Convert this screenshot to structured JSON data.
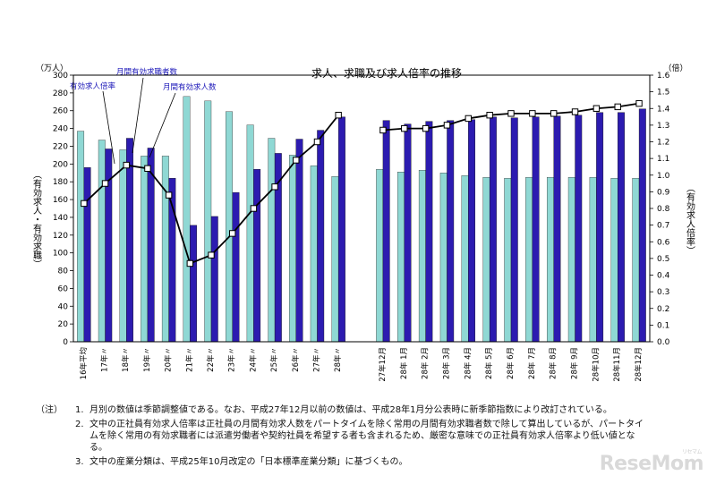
{
  "chart_data": {
    "type": "bar",
    "title": "求人、求職及び求人倍率の推移",
    "left_axis": {
      "unit": "（万人）",
      "label": "（有効求人・有効求職）",
      "range": [
        0,
        300
      ],
      "ticks": [
        "0",
        "20",
        "40",
        "60",
        "80",
        "100",
        "120",
        "140",
        "160",
        "180",
        "200",
        "220",
        "240",
        "260",
        "280",
        "300"
      ]
    },
    "right_axis": {
      "unit": "（倍）",
      "label": "（有効求人倍率）",
      "range": [
        0,
        1.6
      ],
      "ticks": [
        "0.0",
        "0.1",
        "0.2",
        "0.3",
        "0.4",
        "0.5",
        "0.6",
        "0.7",
        "0.8",
        "0.9",
        "1.0",
        "1.1",
        "1.2",
        "1.3",
        "1.4",
        "1.5",
        "1.6"
      ]
    },
    "categories_annual": [
      "16年平均",
      "17年〃",
      "18年〃",
      "19年〃",
      "20年〃",
      "21年〃",
      "22年〃",
      "23年〃",
      "24年〃",
      "25年〃",
      "26年〃",
      "27年〃",
      "28年〃"
    ],
    "categories_monthly": [
      "27年12月",
      "28年 1月",
      "28年 2月",
      "28年 3月",
      "28年 4月",
      "28年 5月",
      "28年 6月",
      "28年 7月",
      "28年 8月",
      "28年 9月",
      "28年10月",
      "28年11月",
      "28年12月"
    ],
    "series": [
      {
        "name": "月間有効求職者数",
        "color": "#8fd8d4",
        "annual": [
          237,
          227,
          216,
          209,
          209,
          276,
          271,
          259,
          244,
          229,
          210,
          198,
          186
        ],
        "monthly": [
          194,
          191,
          193,
          190,
          187,
          185,
          184,
          185,
          185,
          185,
          185,
          184,
          184
        ]
      },
      {
        "name": "月間有効求人数",
        "color": "#2c1bb0",
        "annual": [
          196,
          217,
          229,
          218,
          184,
          131,
          141,
          168,
          194,
          212,
          228,
          238,
          253
        ],
        "monthly": [
          249,
          245,
          248,
          249,
          250,
          253,
          252,
          253,
          254,
          255,
          258,
          258,
          262
        ]
      },
      {
        "name": "有効求人倍率",
        "color": "#000000",
        "annual": [
          0.83,
          0.95,
          1.06,
          1.04,
          0.88,
          0.47,
          0.52,
          0.65,
          0.8,
          0.93,
          1.09,
          1.2,
          1.36
        ],
        "monthly": [
          1.27,
          1.28,
          1.28,
          1.3,
          1.34,
          1.36,
          1.37,
          1.37,
          1.37,
          1.38,
          1.4,
          1.41,
          1.43
        ]
      }
    ],
    "legend_labels": {
      "ratio": "有効求人倍率",
      "seekers": "月間有効求職者数",
      "openings": "月間有効求人数"
    }
  },
  "notes": {
    "head": "（注）",
    "items": [
      {
        "num": "1.",
        "text": "月別の数値は季節調整値である。なお、平成27年12月以前の数値は、平成28年1月分公表時に新季節指数により改訂されている。"
      },
      {
        "num": "2.",
        "text": "文中の正社員有効求人倍率は正社員の月間有効求人数をパートタイムを除く常用の月間有効求職者数で除して算出しているが、パートタイムを除く常用の有効求職者には派遣労働者や契約社員を希望する者も含まれるため、厳密な意味での正社員有効求人倍率より低い値となる。"
      },
      {
        "num": "3.",
        "text": "文中の産業分類は、平成25年10月改定の「日本標準産業分類」に基づくもの。"
      }
    ]
  },
  "watermark": {
    "brand": "ReseMom",
    "kana": "リセマム"
  }
}
